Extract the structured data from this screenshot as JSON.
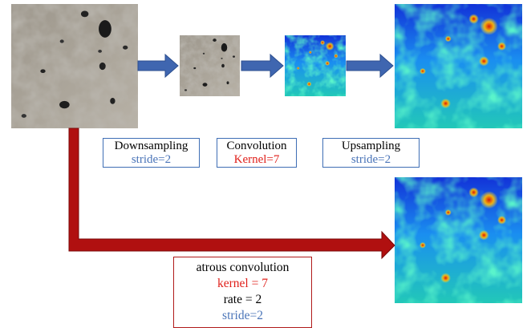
{
  "steps": [
    {
      "label": "Downsampling",
      "param": "stride=2"
    },
    {
      "label": "Convolution",
      "param": "Kernel=7"
    },
    {
      "label": "Upsampling",
      "param": "stride=2"
    }
  ],
  "atrous": {
    "label": "atrous convolution",
    "lines": [
      "kernel = 7",
      "rate = 2",
      "stride=2"
    ]
  }
}
